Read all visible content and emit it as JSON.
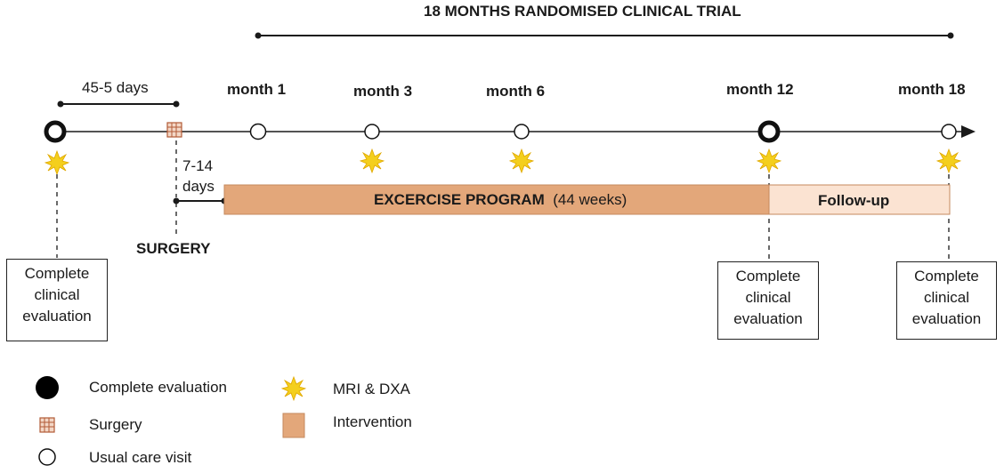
{
  "title": "18 MONTHS RANDOMISED CLINICAL TRIAL",
  "pre_interval": "45-5 days",
  "post_surgery_interval": [
    "7-14",
    "days"
  ],
  "surgery_label": "SURGERY",
  "months": [
    {
      "label": "month 1",
      "type": "usual",
      "mri": false
    },
    {
      "label": "month 3",
      "type": "usual",
      "mri": true
    },
    {
      "label": "month 6",
      "type": "usual",
      "mri": true
    },
    {
      "label": "month 12",
      "type": "complete",
      "mri": true
    },
    {
      "label": "month 18",
      "type": "usual",
      "mri": true
    }
  ],
  "program": {
    "name": "EXCERCISE PROGRAM",
    "duration": "(44 weeks)"
  },
  "followup": "Follow-up",
  "evaluation_box": [
    "Complete",
    "clinical",
    "evaluation"
  ],
  "legend": {
    "complete": "Complete evaluation",
    "surgery": "Surgery",
    "usual": "Usual care visit",
    "mri": "MRI & DXA",
    "intervention": "Intervention"
  },
  "colors": {
    "program": "#e3a77a",
    "followup": "#fbe3d2",
    "star": "#f4cf1d",
    "surgery": "#c97a55",
    "line": "#1a1a1a"
  }
}
